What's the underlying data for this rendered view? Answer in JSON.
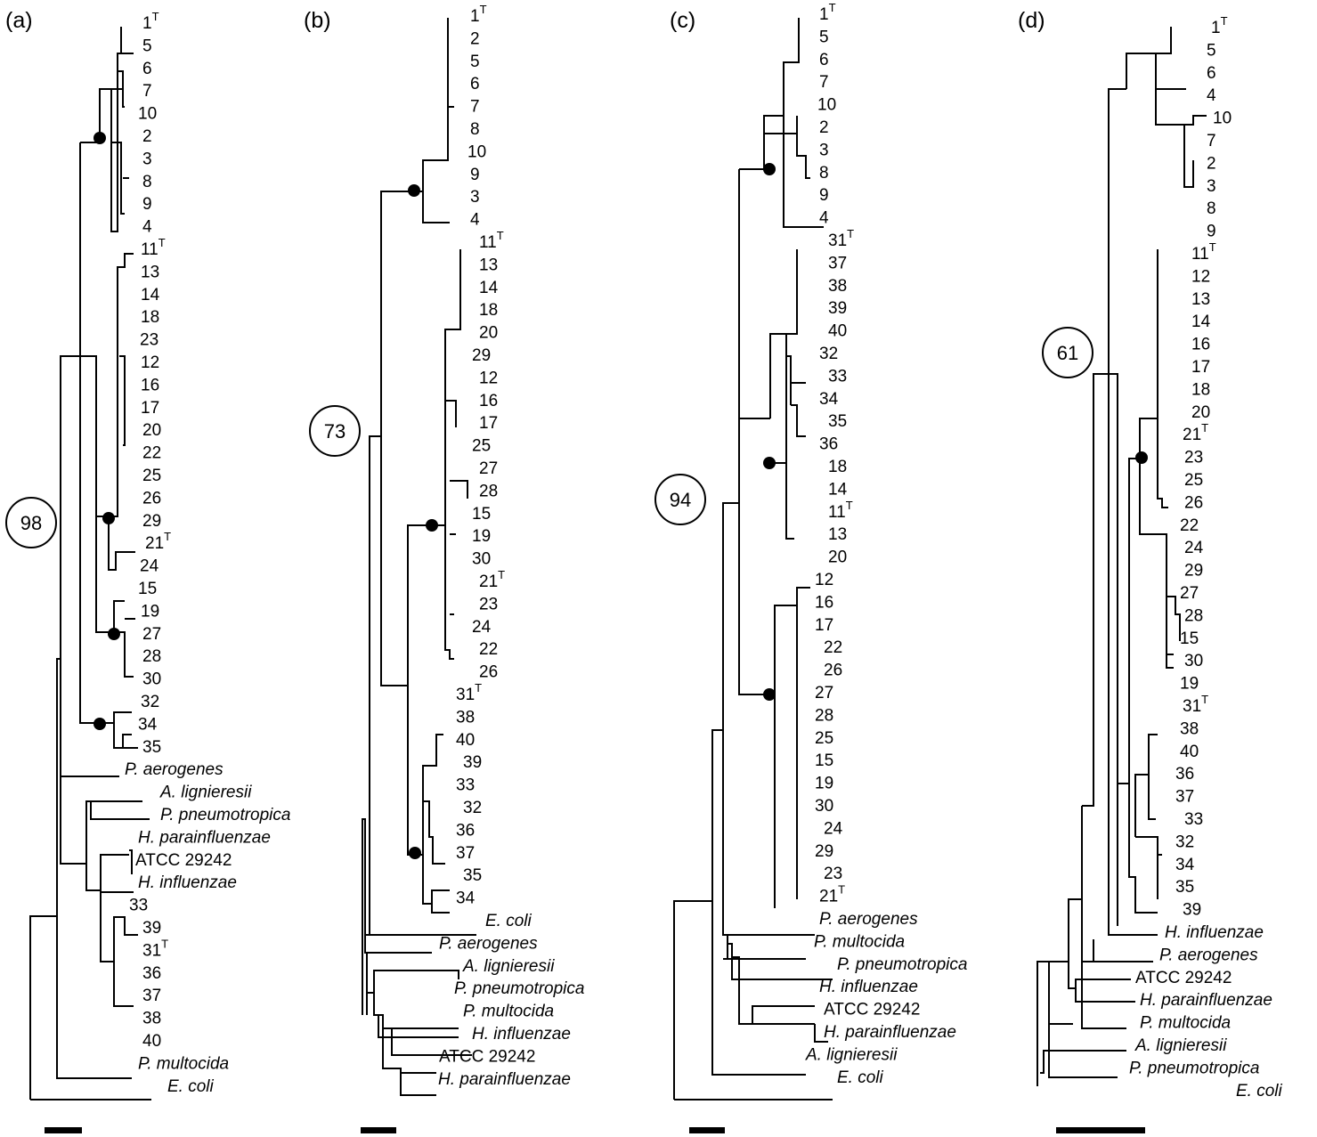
{
  "panels": [
    {
      "label": "(a)",
      "bootstrap": "98",
      "taxa": [
        {
          "t": "1",
          "sup": "T"
        },
        {
          "t": "5"
        },
        {
          "t": "6"
        },
        {
          "t": "7"
        },
        {
          "t": "10"
        },
        {
          "t": "2"
        },
        {
          "t": "3"
        },
        {
          "t": "8"
        },
        {
          "t": "9"
        },
        {
          "t": "4"
        },
        {
          "t": "11",
          "sup": "T"
        },
        {
          "t": "13"
        },
        {
          "t": "14"
        },
        {
          "t": "18"
        },
        {
          "t": "23"
        },
        {
          "t": "12"
        },
        {
          "t": "16"
        },
        {
          "t": "17"
        },
        {
          "t": "20"
        },
        {
          "t": "22"
        },
        {
          "t": "25"
        },
        {
          "t": "26"
        },
        {
          "t": "29"
        },
        {
          "t": "21",
          "sup": "T"
        },
        {
          "t": "24"
        },
        {
          "t": "15"
        },
        {
          "t": "19"
        },
        {
          "t": "27"
        },
        {
          "t": "28"
        },
        {
          "t": "30"
        },
        {
          "t": "32"
        },
        {
          "t": "34"
        },
        {
          "t": "35"
        },
        {
          "t": "P. aerogenes",
          "it": true
        },
        {
          "t": "A. lignieresii",
          "it": true
        },
        {
          "t": "P. pneumotropica",
          "it": true
        },
        {
          "t": "H. parainfluenzae",
          "it": true
        },
        {
          "t": "ATCC 29242"
        },
        {
          "t": "H. influenzae",
          "it": true
        },
        {
          "t": "33"
        },
        {
          "t": "39"
        },
        {
          "t": "31",
          "sup": "T"
        },
        {
          "t": "36"
        },
        {
          "t": "37"
        },
        {
          "t": "38"
        },
        {
          "t": "40"
        },
        {
          "t": "P. multocida",
          "it": true
        },
        {
          "t": "E. coli",
          "it": true
        }
      ]
    },
    {
      "label": "(b)",
      "bootstrap": "73",
      "taxa": [
        {
          "t": "1",
          "sup": "T"
        },
        {
          "t": "2"
        },
        {
          "t": "5"
        },
        {
          "t": "6"
        },
        {
          "t": "7"
        },
        {
          "t": "8"
        },
        {
          "t": "10"
        },
        {
          "t": "9"
        },
        {
          "t": "3"
        },
        {
          "t": "4"
        },
        {
          "t": "11",
          "sup": "T"
        },
        {
          "t": "13"
        },
        {
          "t": "14"
        },
        {
          "t": "18"
        },
        {
          "t": "20"
        },
        {
          "t": "29"
        },
        {
          "t": "12"
        },
        {
          "t": "16"
        },
        {
          "t": "17"
        },
        {
          "t": "25"
        },
        {
          "t": "27"
        },
        {
          "t": "28"
        },
        {
          "t": "15"
        },
        {
          "t": "19"
        },
        {
          "t": "30"
        },
        {
          "t": "21",
          "sup": "T"
        },
        {
          "t": "23"
        },
        {
          "t": "24"
        },
        {
          "t": "22"
        },
        {
          "t": "26"
        },
        {
          "t": "31",
          "sup": "T"
        },
        {
          "t": "38"
        },
        {
          "t": "40"
        },
        {
          "t": "39"
        },
        {
          "t": "33"
        },
        {
          "t": "32"
        },
        {
          "t": "36"
        },
        {
          "t": "37"
        },
        {
          "t": "35"
        },
        {
          "t": "34"
        },
        {
          "t": "E. coli",
          "it": true
        },
        {
          "t": "P. aerogenes",
          "it": true
        },
        {
          "t": "A. lignieresii",
          "it": true
        },
        {
          "t": "P. pneumotropica",
          "it": true
        },
        {
          "t": "P. multocida",
          "it": true
        },
        {
          "t": "H. influenzae",
          "it": true
        },
        {
          "t": "ATCC 29242"
        },
        {
          "t": "H. parainfluenzae",
          "it": true
        }
      ]
    },
    {
      "label": "(c)",
      "bootstrap": "94",
      "taxa": [
        {
          "t": "1",
          "sup": "T"
        },
        {
          "t": "5"
        },
        {
          "t": "6"
        },
        {
          "t": "7"
        },
        {
          "t": "10"
        },
        {
          "t": "2"
        },
        {
          "t": "3"
        },
        {
          "t": "8"
        },
        {
          "t": "9"
        },
        {
          "t": "4"
        },
        {
          "t": "31",
          "sup": "T"
        },
        {
          "t": "37"
        },
        {
          "t": "38"
        },
        {
          "t": "39"
        },
        {
          "t": "40"
        },
        {
          "t": "32"
        },
        {
          "t": "33"
        },
        {
          "t": "34"
        },
        {
          "t": "35"
        },
        {
          "t": "36"
        },
        {
          "t": "18"
        },
        {
          "t": "14"
        },
        {
          "t": "11",
          "sup": "T"
        },
        {
          "t": "13"
        },
        {
          "t": "20"
        },
        {
          "t": "12"
        },
        {
          "t": "16"
        },
        {
          "t": "17"
        },
        {
          "t": "22"
        },
        {
          "t": "26"
        },
        {
          "t": "27"
        },
        {
          "t": "28"
        },
        {
          "t": "25"
        },
        {
          "t": "15"
        },
        {
          "t": "19"
        },
        {
          "t": "30"
        },
        {
          "t": "24"
        },
        {
          "t": "29"
        },
        {
          "t": "23"
        },
        {
          "t": "21",
          "sup": "T"
        },
        {
          "t": "P. aerogenes",
          "it": true
        },
        {
          "t": "P. multocida",
          "it": true
        },
        {
          "t": "P. pneumotropica",
          "it": true
        },
        {
          "t": "H. influenzae",
          "it": true
        },
        {
          "t": "ATCC 29242"
        },
        {
          "t": "H. parainfluenzae",
          "it": true
        },
        {
          "t": "A. lignieresii",
          "it": true
        },
        {
          "t": "E. coli",
          "it": true
        }
      ]
    },
    {
      "label": "(d)",
      "bootstrap": "61",
      "taxa": [
        {
          "t": "1",
          "sup": "T"
        },
        {
          "t": "5"
        },
        {
          "t": "6"
        },
        {
          "t": "4"
        },
        {
          "t": "10"
        },
        {
          "t": "7"
        },
        {
          "t": "2"
        },
        {
          "t": "3"
        },
        {
          "t": "8"
        },
        {
          "t": "9"
        },
        {
          "t": "11",
          "sup": "T"
        },
        {
          "t": "12"
        },
        {
          "t": "13"
        },
        {
          "t": "14"
        },
        {
          "t": "16"
        },
        {
          "t": "17"
        },
        {
          "t": "18"
        },
        {
          "t": "20"
        },
        {
          "t": "21",
          "sup": "T"
        },
        {
          "t": "23"
        },
        {
          "t": "25"
        },
        {
          "t": "26"
        },
        {
          "t": "22"
        },
        {
          "t": "24"
        },
        {
          "t": "29"
        },
        {
          "t": "27"
        },
        {
          "t": "28"
        },
        {
          "t": "15"
        },
        {
          "t": "30"
        },
        {
          "t": "19"
        },
        {
          "t": "31",
          "sup": "T"
        },
        {
          "t": "38"
        },
        {
          "t": "40"
        },
        {
          "t": "36"
        },
        {
          "t": "37"
        },
        {
          "t": "33"
        },
        {
          "t": "32"
        },
        {
          "t": "34"
        },
        {
          "t": "35"
        },
        {
          "t": "39"
        },
        {
          "t": "H. influenzae",
          "it": true
        },
        {
          "t": "P. aerogenes",
          "it": true
        },
        {
          "t": "ATCC 29242"
        },
        {
          "t": "H. parainfluenzae",
          "it": true
        },
        {
          "t": "P. multocida",
          "it": true
        },
        {
          "t": "A. lignieresii",
          "it": true
        },
        {
          "t": "P. pneumotropica",
          "it": true
        },
        {
          "t": "E. coli",
          "it": true
        }
      ]
    }
  ]
}
